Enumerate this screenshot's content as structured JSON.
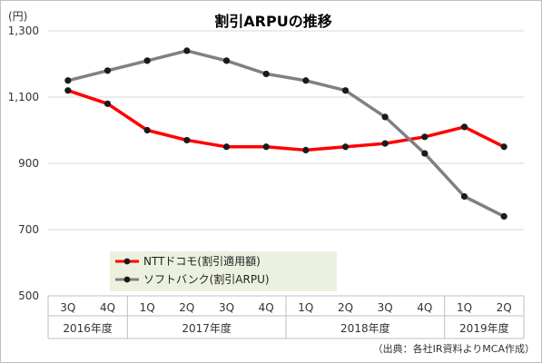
{
  "chart_data": {
    "type": "line",
    "title": "割引ARPUの推移",
    "yunit": "(円)",
    "ylim": [
      500,
      1300
    ],
    "yticks": [
      "500",
      "700",
      "900",
      "1,100",
      "1,300"
    ],
    "categories": [
      "3Q",
      "4Q",
      "1Q",
      "2Q",
      "3Q",
      "4Q",
      "1Q",
      "2Q",
      "3Q",
      "4Q",
      "1Q",
      "2Q"
    ],
    "groups": [
      {
        "label": "2016年度",
        "span": 2
      },
      {
        "label": "2017年度",
        "span": 4
      },
      {
        "label": "2018年度",
        "span": 4
      },
      {
        "label": "2019年度",
        "span": 2
      }
    ],
    "series": [
      {
        "name": "NTTドコモ(割引適用額)",
        "color": "#ff0000",
        "values": [
          1120,
          1080,
          1000,
          970,
          950,
          950,
          940,
          950,
          960,
          980,
          1010,
          950
        ]
      },
      {
        "name": "ソフトバンク(割引ARPU)",
        "color": "#808080",
        "values": [
          1150,
          1180,
          1210,
          1240,
          1210,
          1170,
          1150,
          1120,
          1040,
          930,
          800,
          740
        ]
      }
    ],
    "legend_position": "bottom-left",
    "grid": true,
    "source": "（出典：各社IR資料よりMCA作成）"
  }
}
